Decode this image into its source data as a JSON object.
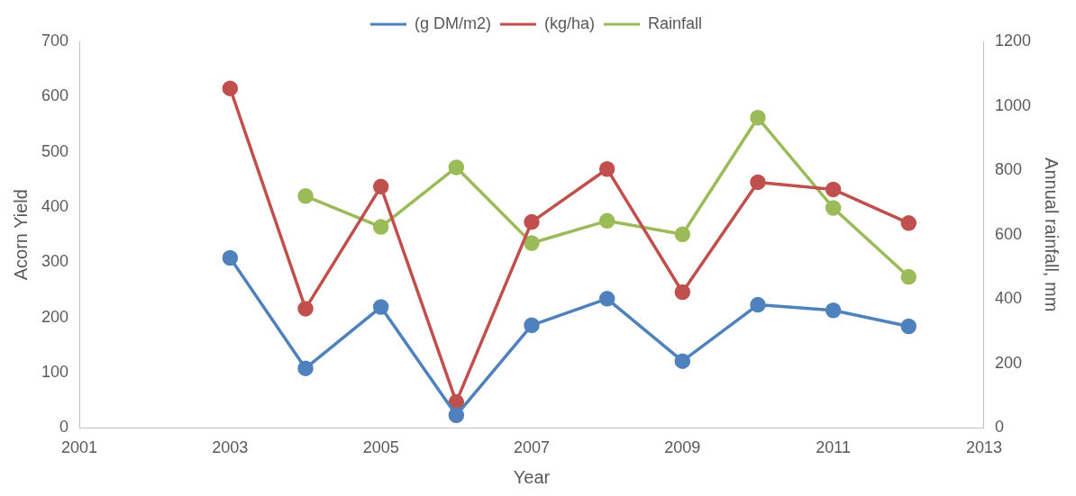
{
  "chart_data": {
    "type": "line",
    "xlabel": "Year",
    "ylabel": "Acorn Yield",
    "y2label": "Annual rainfall, mm",
    "xlim": [
      2001,
      2013
    ],
    "xticks": [
      2001,
      2003,
      2005,
      2007,
      2009,
      2011,
      2013
    ],
    "ylim": [
      0,
      700
    ],
    "yticks": [
      0,
      100,
      200,
      300,
      400,
      500,
      600,
      700
    ],
    "y2lim": [
      0,
      1200
    ],
    "y2ticks": [
      0,
      200,
      400,
      600,
      800,
      1000,
      1200
    ],
    "x": [
      2003,
      2004,
      2005,
      2006,
      2007,
      2008,
      2009,
      2010,
      2011,
      2012
    ],
    "grid": false,
    "legend": "top",
    "marker": "circle",
    "line_style": "solid",
    "series": [
      {
        "name": "(g DM/m2)",
        "color": "#4f81bd",
        "values": [
          308,
          108,
          219,
          23,
          186,
          234,
          121,
          223,
          213,
          184
        ]
      },
      {
        "name": "(kg/ha)",
        "color": "#c0504d",
        "values": [
          615,
          216,
          437,
          47,
          373,
          469,
          246,
          445,
          432,
          371
        ]
      },
      {
        "name": "Rainfall",
        "color": "#9bbb59",
        "axis": "y2",
        "values": [
          null,
          720,
          624,
          809,
          574,
          643,
          601,
          963,
          683,
          469
        ]
      }
    ]
  }
}
